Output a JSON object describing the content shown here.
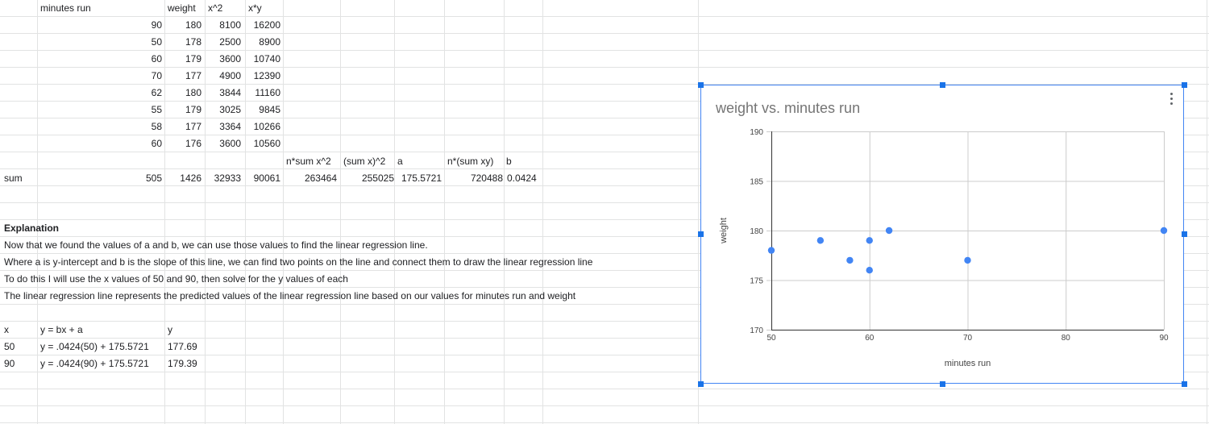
{
  "sheet": {
    "header_row": {
      "a": "",
      "b": "minutes run",
      "c": "",
      "d": "weight",
      "e": "x^2",
      "f": "x*y"
    },
    "data_rows": [
      {
        "minutes": "90",
        "weight": "180",
        "x2": "8100",
        "xy": "16200"
      },
      {
        "minutes": "50",
        "weight": "178",
        "x2": "2500",
        "xy": "8900"
      },
      {
        "minutes": "60",
        "weight": "179",
        "x2": "3600",
        "xy": "10740"
      },
      {
        "minutes": "70",
        "weight": "177",
        "x2": "4900",
        "xy": "12390"
      },
      {
        "minutes": "62",
        "weight": "180",
        "x2": "3844",
        "xy": "11160"
      },
      {
        "minutes": "55",
        "weight": "179",
        "x2": "3025",
        "xy": "9845"
      },
      {
        "minutes": "58",
        "weight": "177",
        "x2": "3364",
        "xy": "10266"
      },
      {
        "minutes": "60",
        "weight": "176",
        "x2": "3600",
        "xy": "10560"
      }
    ],
    "calc_headers": {
      "n_sum_x2": "n*sum x^2",
      "sum_x_sq": "(sum x)^2",
      "a": "a",
      "n_sum_xy": "n*(sum xy)",
      "b": "b"
    },
    "sum_row": {
      "label": "sum",
      "minutes": "505",
      "weight": "1426",
      "x2": "32933",
      "xy": "90061",
      "n_sum_x2": "263464",
      "sum_x_sq": "255025",
      "a": "175.5721",
      "n_sum_xy": "720488",
      "b": "0.0424"
    },
    "explanation": {
      "heading": "Explanation",
      "lines": [
        "Now that we found the values of a and b, we can use those values to find the linear regression line.",
        "Where a is y-intercept and b is the slope of this line, we can find two points on the line and connect them to draw the linear regression line",
        "To do this I will use the x values of 50 and 90, then solve for the y values of each",
        "The linear regression line represents the predicted values of the linear regression line based on our values for minutes run and weight"
      ]
    },
    "prediction_table": {
      "headers": {
        "x": "x",
        "formula": "y = bx + a",
        "y": "y"
      },
      "rows": [
        {
          "x": "50",
          "formula": "y = .0424(50) + 175.5721",
          "y": "177.69"
        },
        {
          "x": "90",
          "formula": "y = .0424(90) + 175.5721",
          "y": "179.39"
        }
      ]
    }
  },
  "chart_data": {
    "type": "scatter",
    "title": "weight vs. minutes run",
    "xlabel": "minutes run",
    "ylabel": "weight",
    "xlim": [
      50,
      90
    ],
    "ylim": [
      170,
      190
    ],
    "xticks": [
      50,
      60,
      70,
      80,
      90
    ],
    "yticks": [
      170,
      175,
      180,
      185,
      190
    ],
    "grid": true,
    "series": [
      {
        "x": [
          90,
          50,
          60,
          70,
          62,
          55,
          58,
          60
        ],
        "y": [
          180,
          178,
          179,
          177,
          180,
          179,
          177,
          176
        ]
      }
    ],
    "point_color": "#4285f4"
  },
  "colors": {
    "grid_line": "#e2e3e3",
    "selection": "#1a73e8"
  }
}
